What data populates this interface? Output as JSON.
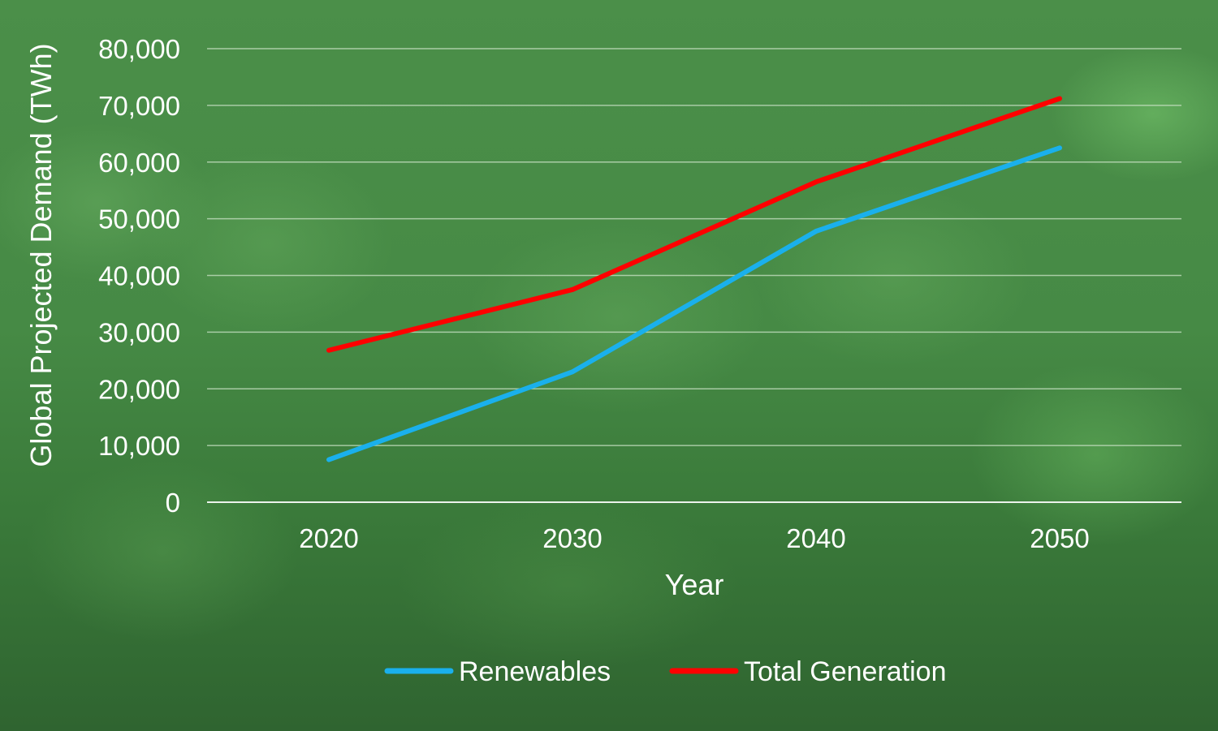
{
  "chart_data": {
    "type": "line",
    "title": "",
    "xlabel": "Year",
    "ylabel": "Global Projected Demand (TWh)",
    "categories": [
      "2020",
      "2030",
      "2040",
      "2050"
    ],
    "series": [
      {
        "name": "Renewables",
        "color": "#1ab0ec",
        "values": [
          7500,
          23000,
          47800,
          62500
        ]
      },
      {
        "name": "Total Generation",
        "color": "#ff0000",
        "values": [
          26800,
          37500,
          56500,
          71200
        ]
      }
    ],
    "ylim": [
      0,
      80000
    ],
    "yticks": [
      0,
      10000,
      20000,
      30000,
      40000,
      50000,
      60000,
      70000,
      80000
    ],
    "ytick_labels": [
      "0",
      "10,000",
      "20,000",
      "30,000",
      "40,000",
      "50,000",
      "60,000",
      "70,000",
      "80,000"
    ],
    "grid": true,
    "legend_position": "bottom"
  }
}
